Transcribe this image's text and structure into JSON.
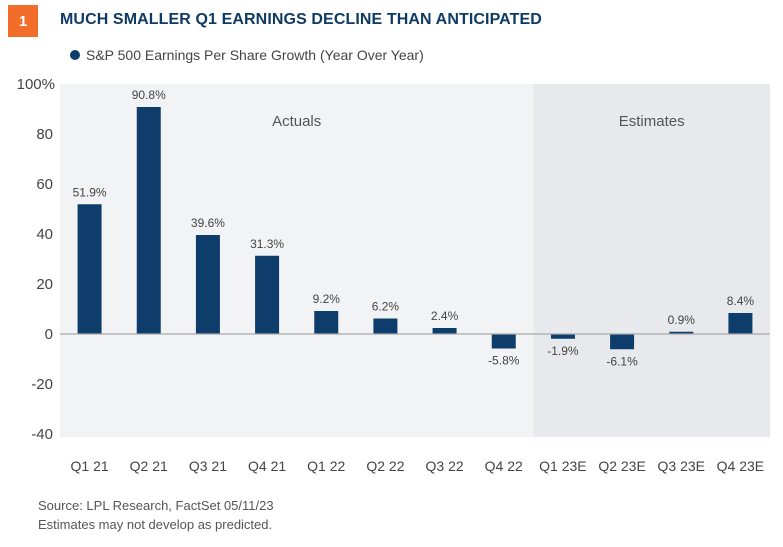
{
  "figure_number": "1",
  "title": "MUCH SMALLER Q1 EARNINGS DECLINE THAN ANTICIPATED",
  "footer": {
    "source": "Source: LPL Research, FactSet  05/11/23",
    "note": "Estimates may not develop as predicted."
  },
  "colors": {
    "bar": "#0e3d6b",
    "accent": "#f26d2a",
    "actuals_bg": "#f2f3f5",
    "estimates_bg": "#e8e9ed"
  },
  "chart_data": {
    "type": "bar",
    "categories": [
      "Q1 21",
      "Q2 21",
      "Q3 21",
      "Q4 21",
      "Q1 22",
      "Q2 22",
      "Q3 22",
      "Q4 22",
      "Q1 23E",
      "Q2 23E",
      "Q3 23E",
      "Q4 23E"
    ],
    "series": [
      {
        "name": "S&P 500 Earnings Per Share Growth (Year Over Year)",
        "values": [
          51.9,
          90.8,
          39.6,
          31.3,
          9.2,
          6.2,
          2.4,
          -5.8,
          -1.9,
          -6.1,
          0.9,
          8.4
        ]
      }
    ],
    "data_labels": [
      "51.9%",
      "90.8%",
      "39.6%",
      "31.3%",
      "9.2%",
      "6.2%",
      "2.4%",
      "-5.8%",
      "-1.9%",
      "-6.1%",
      "0.9%",
      "8.4%"
    ],
    "ylim": [
      -40,
      100
    ],
    "yticks": [
      100,
      80,
      60,
      40,
      20,
      0,
      -20,
      -40
    ],
    "ytick_labels": [
      "100%",
      "80",
      "60",
      "40",
      "20",
      "0",
      "-20",
      "-40"
    ],
    "regions": [
      {
        "label": "Actuals",
        "from": "Q1 21",
        "to": "Q4 22"
      },
      {
        "label": "Estimates",
        "from": "Q1 23E",
        "to": "Q4 23E"
      }
    ],
    "grid": false,
    "legend": "top-left"
  }
}
